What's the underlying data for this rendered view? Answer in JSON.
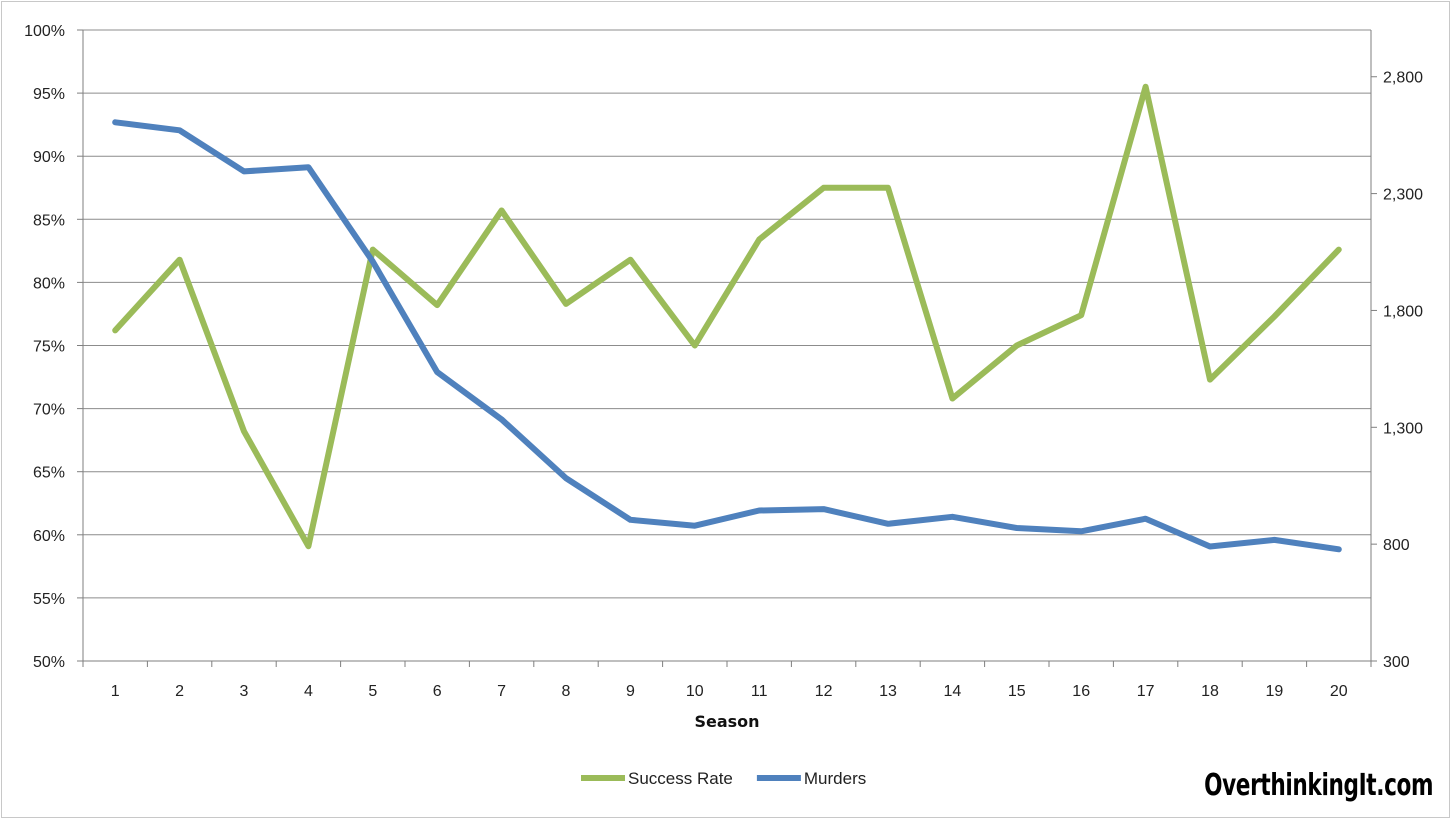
{
  "chart_data": {
    "type": "line",
    "xlabel": "Season",
    "x": [
      "1",
      "2",
      "3",
      "4",
      "5",
      "6",
      "7",
      "8",
      "9",
      "10",
      "11",
      "12",
      "13",
      "14",
      "15",
      "16",
      "17",
      "18",
      "19",
      "20"
    ],
    "y_left": {
      "min": 0.5,
      "max": 1.0,
      "step": 0.05,
      "ticks": [
        "50%",
        "55%",
        "60%",
        "65%",
        "70%",
        "75%",
        "80%",
        "85%",
        "90%",
        "95%",
        "100%"
      ]
    },
    "y_right": {
      "min": 300,
      "max": 3000,
      "step": 500,
      "ticks": [
        "300",
        "800",
        "1,300",
        "1,800",
        "2,300",
        "2,800"
      ]
    },
    "series": [
      {
        "name": "Success Rate",
        "axis": "left",
        "color": "#9bbb59",
        "values": [
          0.762,
          0.818,
          0.682,
          0.591,
          0.826,
          0.782,
          0.857,
          0.783,
          0.818,
          0.75,
          0.834,
          0.875,
          0.875,
          0.708,
          0.75,
          0.774,
          0.955,
          0.723,
          0.773,
          0.826
        ]
      },
      {
        "name": "Murders",
        "axis": "right",
        "color": "#4f81bd",
        "values": [
          2605,
          2571,
          2395,
          2413,
          2009,
          1536,
          1334,
          1082,
          904,
          879,
          944,
          950,
          887,
          917,
          869,
          855,
          909,
          790,
          818,
          778
        ]
      }
    ],
    "legend": "bottom",
    "grid": true
  },
  "watermark": "OverthinkingIt.com"
}
